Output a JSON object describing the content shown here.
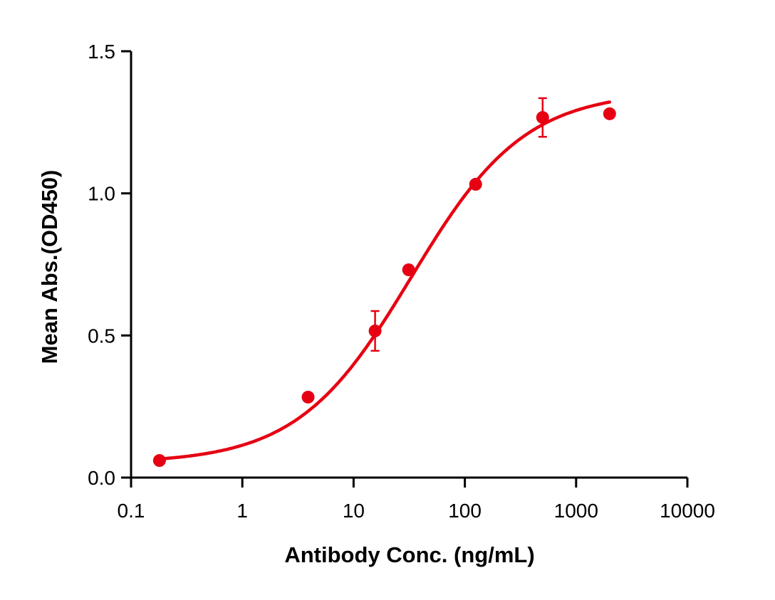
{
  "chart_data": {
    "type": "scatter",
    "title": "",
    "xlabel": "Antibody Conc. (ng/mL)",
    "ylabel": "Mean Abs.(OD450)",
    "x_scale": "log",
    "xlim": [
      0.1,
      10000
    ],
    "ylim": [
      0,
      1.5
    ],
    "x_ticks": [
      "0.1",
      "1",
      "10",
      "100",
      "1000",
      "10000"
    ],
    "x_tick_values": [
      0.1,
      1,
      10,
      100,
      1000,
      10000
    ],
    "y_ticks": [
      "0.0",
      "0.5",
      "1.0",
      "1.5"
    ],
    "y_tick_values": [
      0,
      0.5,
      1.0,
      1.5
    ],
    "grid": false,
    "color": "#E60012",
    "fit_curve": "four-parameter logistic",
    "series": [
      {
        "x": [
          0.18,
          3.9,
          15.6,
          31.25,
          125,
          500,
          2000
        ],
        "y": [
          0.06,
          0.283,
          0.516,
          0.731,
          1.032,
          1.267,
          1.28
        ],
        "error": [
          0.005,
          0.005,
          0.07,
          0.005,
          0.005,
          0.068,
          0.005
        ]
      }
    ]
  }
}
